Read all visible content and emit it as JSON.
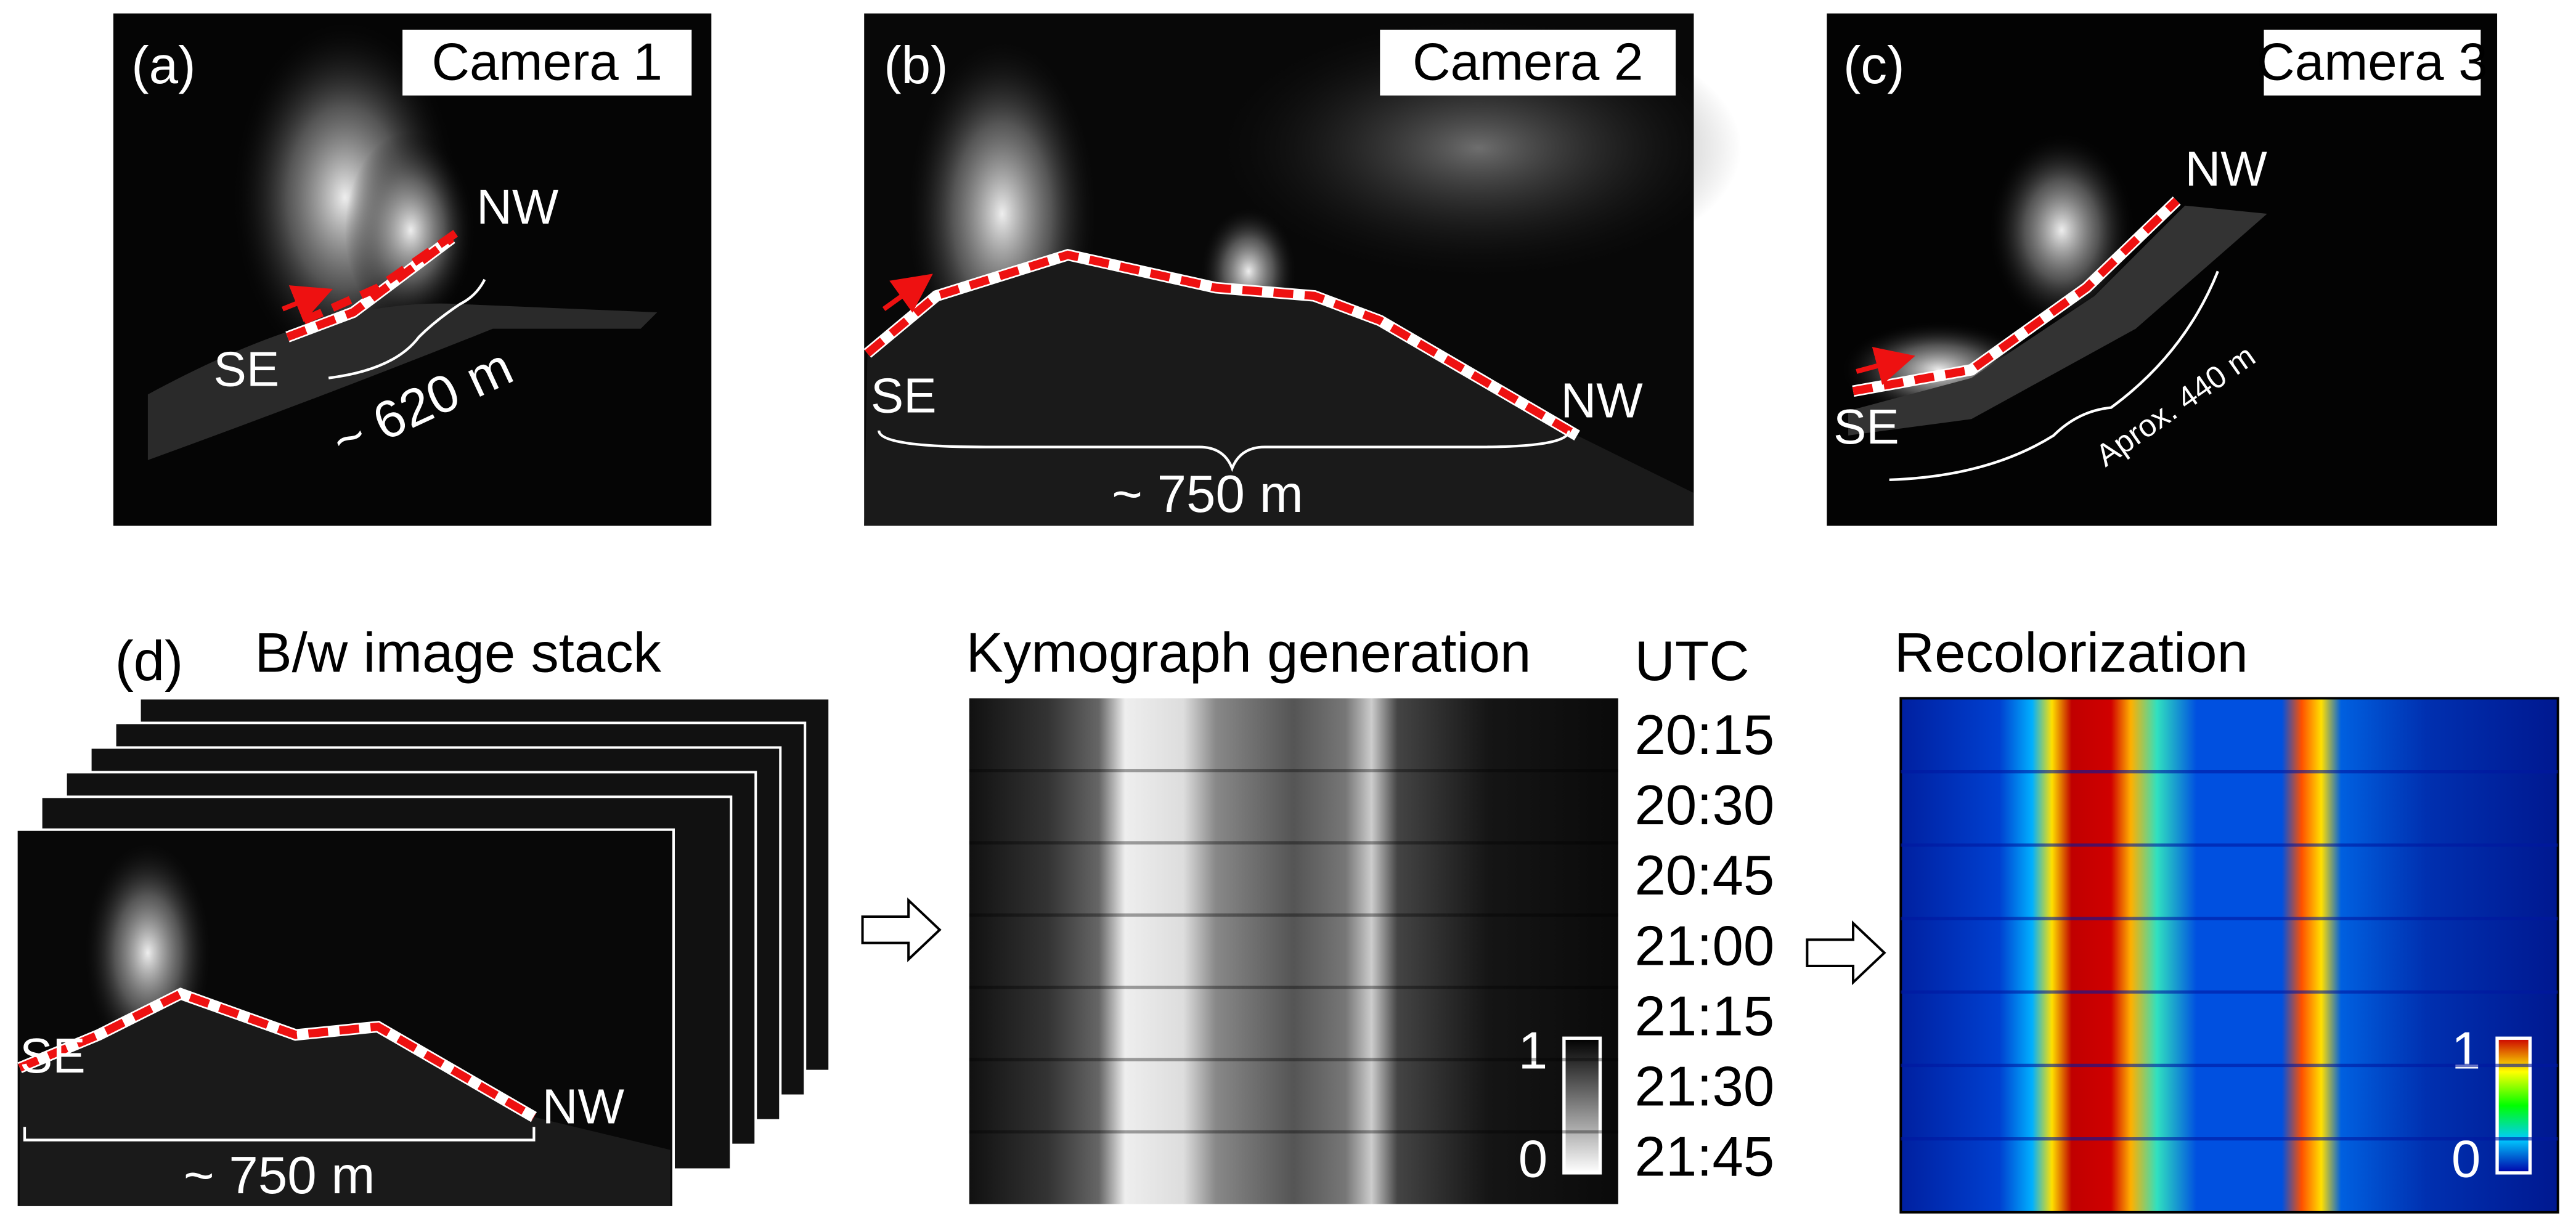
{
  "panels": [
    {
      "label": "(a)",
      "camera": "Camera 1",
      "start": "SE",
      "end": "NW",
      "distance": "~ 620 m"
    },
    {
      "label": "(b)",
      "camera": "Camera 2",
      "start": "SE",
      "end": "NW",
      "distance": "~ 750 m"
    },
    {
      "label": "(c)",
      "camera": "Camera 3",
      "start": "SE",
      "end": "NW",
      "distance": "Aprox. 440 m"
    }
  ],
  "stack": {
    "label": "(d)",
    "title": "B/w image stack",
    "start": "SE",
    "end": "NW",
    "distance": "~ 750 m"
  },
  "kymograph": {
    "title": "Kymograph generation",
    "time_header": "UTC",
    "times": [
      "20:15",
      "20:30",
      "20:45",
      "21:00",
      "21:15",
      "21:30",
      "21:45"
    ],
    "colorbar_max": "1",
    "colorbar_min": "0"
  },
  "recolor": {
    "title": "Recolorization",
    "colorbar_max": "1",
    "colorbar_min": "0"
  }
}
